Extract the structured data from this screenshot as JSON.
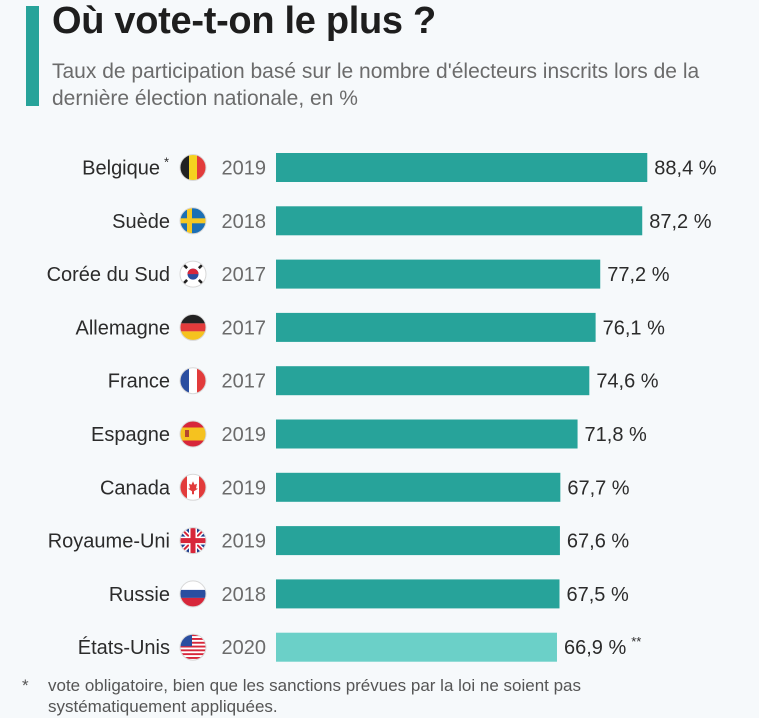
{
  "header": {
    "title": "Où vote-t-on le plus ?",
    "subtitle": "Taux de participation basé sur le nombre d'électeurs inscrits lors de la dernière élection nationale, en %"
  },
  "chart_data": {
    "type": "bar",
    "orientation": "horizontal",
    "categories": [
      "Belgique",
      "Suède",
      "Corée du Sud",
      "Allemagne",
      "France",
      "Espagne",
      "Canada",
      "Royaume-Uni",
      "Russie",
      "États-Unis"
    ],
    "years": [
      "2019",
      "2018",
      "2017",
      "2017",
      "2017",
      "2019",
      "2019",
      "2019",
      "2018",
      "2020"
    ],
    "values": [
      88.4,
      87.2,
      77.2,
      76.1,
      74.6,
      71.8,
      67.7,
      67.6,
      67.5,
      66.9
    ],
    "value_labels": [
      "88,4 %",
      "87,2 %",
      "77,2 %",
      "76,1 %",
      "74,6 %",
      "71,8 %",
      "67,7 %",
      "67,6 %",
      "67,5 %",
      "66,9 %"
    ],
    "category_marks": [
      "*",
      "",
      "",
      "",
      "",
      "",
      "",
      "",
      "",
      ""
    ],
    "value_marks": [
      "",
      "",
      "",
      "",
      "",
      "",
      "",
      "",
      "",
      "**"
    ],
    "flags": [
      "flag-belgium",
      "flag-sweden",
      "flag-south-korea",
      "flag-germany",
      "flag-france",
      "flag-spain",
      "flag-canada",
      "flag-uk",
      "flag-russia",
      "flag-usa"
    ],
    "colors": [
      "#27a39a",
      "#27a39a",
      "#27a39a",
      "#27a39a",
      "#27a39a",
      "#27a39a",
      "#27a39a",
      "#27a39a",
      "#27a39a",
      "#6bd0c8"
    ],
    "xlim": [
      0,
      100
    ],
    "grid": false,
    "legend": "none"
  },
  "footnote": {
    "marker": "*",
    "text": "vote obligatoire, bien que les sanctions prévues par la loi ne soient pas systématiquement appliquées."
  }
}
